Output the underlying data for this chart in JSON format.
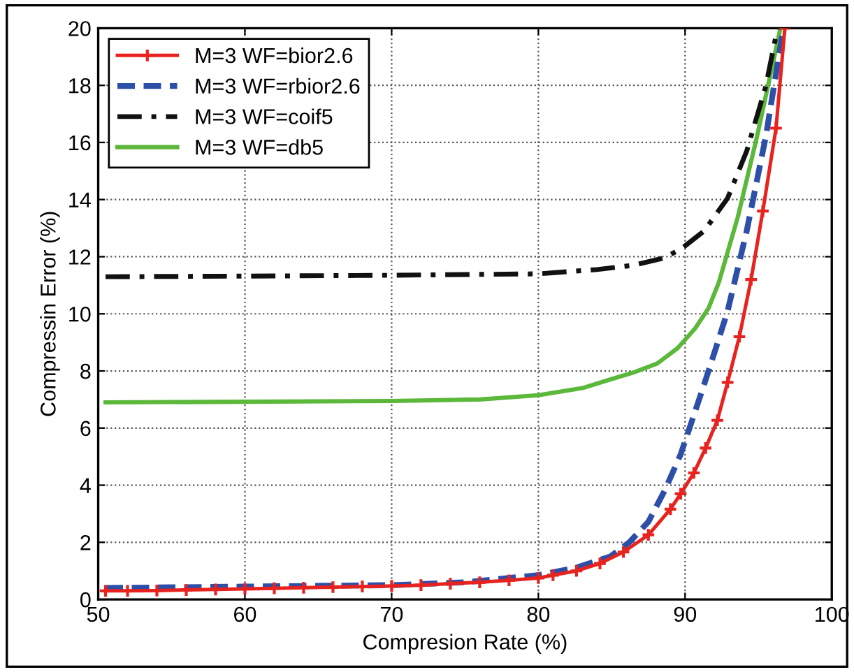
{
  "chart_data": {
    "type": "line",
    "xlabel": "Compresion Rate (%)",
    "ylabel": "Compressin Error (%)",
    "xlim": [
      50,
      100
    ],
    "xticks": [
      50,
      60,
      70,
      80,
      90,
      100
    ],
    "ylim": [
      0,
      20
    ],
    "yticks": [
      0,
      2,
      4,
      6,
      8,
      10,
      12,
      14,
      16,
      18,
      20
    ],
    "grid": true,
    "legend": "top left",
    "series": [
      {
        "name": "M=3 WF=bior2.6",
        "color": "#e8231f",
        "marker": "cross",
        "line_style": "solid",
        "x": [
          50.5,
          52,
          54,
          56,
          58,
          60,
          62,
          64,
          66,
          68,
          70,
          72,
          74,
          76,
          78,
          80,
          81,
          82.6,
          84.2,
          85.8,
          87.5,
          89,
          89.7,
          90.6,
          91.4,
          92.2,
          92.9,
          93.7,
          94.5,
          95.3,
          96.2,
          96.8
        ],
        "values": [
          0.3,
          0.3,
          0.31,
          0.33,
          0.35,
          0.37,
          0.39,
          0.41,
          0.43,
          0.45,
          0.47,
          0.5,
          0.55,
          0.6,
          0.67,
          0.75,
          0.85,
          1.0,
          1.26,
          1.66,
          2.26,
          3.16,
          3.7,
          4.43,
          5.3,
          6.27,
          7.6,
          9.2,
          11.2,
          13.6,
          16.5,
          20
        ]
      },
      {
        "name": "M=3 WF=rbior2.6",
        "color": "#2e4fa8",
        "marker": "none",
        "line_style": "dashed",
        "x": [
          50.5,
          60,
          70,
          75,
          80,
          82.5,
          84.9,
          86.2,
          87.5,
          88.6,
          89.7,
          90.5,
          91.3,
          92.1,
          92.9,
          94.2,
          95.5,
          96.7
        ],
        "values": [
          0.4,
          0.45,
          0.5,
          0.6,
          0.85,
          1.1,
          1.5,
          2.0,
          2.72,
          3.8,
          5.08,
          6.3,
          7.53,
          8.8,
          10.1,
          12.9,
          16.2,
          20
        ]
      },
      {
        "name": "M=3 WF=coif5",
        "color": "#111111",
        "marker": "none",
        "line_style": "dashdot",
        "x": [
          50.5,
          60,
          70,
          80,
          84,
          86.5,
          88.5,
          89.7,
          91.3,
          92.9,
          94.2,
          95.5,
          96.3
        ],
        "values": [
          11.3,
          11.32,
          11.35,
          11.4,
          11.55,
          11.7,
          11.95,
          12.26,
          12.9,
          14.05,
          15.7,
          17.96,
          20
        ]
      },
      {
        "name": "M=3 WF=db5",
        "color": "#5cb83a",
        "marker": "none",
        "line_style": "solid",
        "x": [
          50.5,
          60,
          70,
          76,
          80,
          83,
          84.9,
          86.5,
          88.1,
          89.5,
          90.7,
          91.6,
          92.3,
          93.6,
          94.9,
          96.5
        ],
        "values": [
          6.9,
          6.92,
          6.95,
          7.0,
          7.15,
          7.4,
          7.7,
          7.95,
          8.26,
          8.8,
          9.5,
          10.2,
          11.1,
          13.4,
          16.2,
          20
        ]
      }
    ]
  }
}
